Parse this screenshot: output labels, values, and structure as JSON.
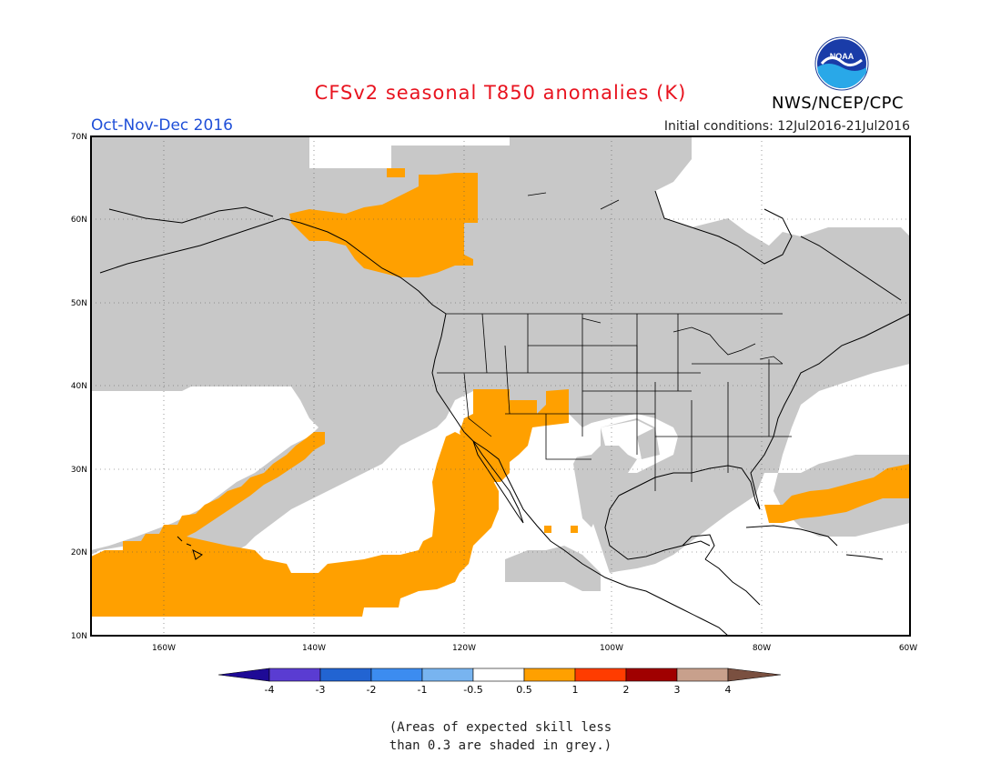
{
  "header": {
    "title": "CFSv2 seasonal T850 anomalies (K)",
    "period": "Oct-Nov-Dec 2016",
    "initial_conditions": "Initial conditions: 12Jul2016-21Jul2016",
    "agency": "NWS/NCEP/CPC",
    "logo_text": "NOAA"
  },
  "map": {
    "lat_labels": [
      "70N",
      "60N",
      "50N",
      "40N",
      "30N",
      "20N",
      "10N"
    ],
    "lon_labels": [
      "160W",
      "140W",
      "120W",
      "100W",
      "80W",
      "60W"
    ],
    "region": "North America and northeast Pacific",
    "colors": {
      "grey_skill": "#c8c8c8",
      "warm_0_5_1": "#ffa000",
      "land_white": "#ffffff"
    }
  },
  "colorbar": {
    "labels": [
      "-4",
      "-3",
      "-2",
      "-1",
      "-0.5",
      "0.5",
      "1",
      "2",
      "3",
      "4"
    ],
    "colors": [
      "#1e0a96",
      "#5a3cd2",
      "#2264d2",
      "#3c8cf0",
      "#78b4f0",
      "#ffffff",
      "#ffa000",
      "#ff3c00",
      "#a00000",
      "#c8a08c",
      "#7a5040"
    ]
  },
  "footnote": {
    "line1": "(Areas of expected skill less",
    "line2": "than 0.3 are shaded in grey.)"
  }
}
